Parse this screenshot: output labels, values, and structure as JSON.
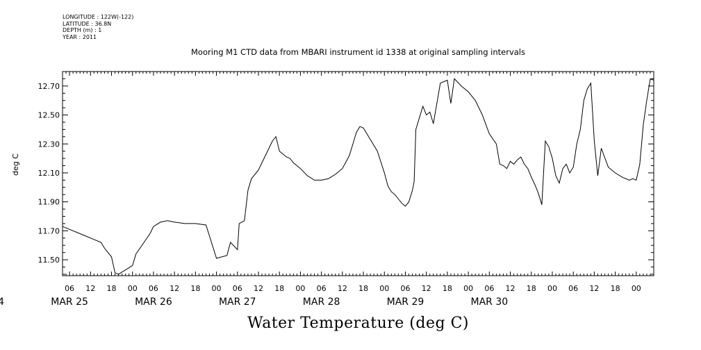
{
  "meta": {
    "longitude": "LONGITUDE : 122W(-122)",
    "latitude": "LATITUDE : 36.8N",
    "depth": "DEPTH (m) : 1",
    "year": "YEAR : 2011"
  },
  "chart_data": {
    "type": "line",
    "title": "Mooring M1 CTD data from MBARI instrument id 1338 at original sampling intervals",
    "xlabel": "Water Temperature (deg C)",
    "ylabel": "deg C",
    "ylim": [
      11.39,
      12.8
    ],
    "yticks": [
      "11.50",
      "11.70",
      "11.90",
      "12.10",
      "12.30",
      "12.50",
      "12.70"
    ],
    "x_units": "hours since MAR 23 2011 00:00",
    "xlim": [
      58,
      227
    ],
    "hour_ticks": [
      "06",
      "12",
      "18",
      "00",
      "06",
      "12",
      "18",
      "00",
      "06",
      "12",
      "18",
      "00",
      "06",
      "12",
      "18",
      "00",
      "06",
      "12",
      "18",
      "00",
      "06",
      "12",
      "18",
      "00",
      "06",
      "12",
      "18",
      "00",
      "06",
      "12",
      "18",
      "00"
    ],
    "day_labels": [
      "MAR 24",
      "MAR 25",
      "MAR 26",
      "MAR 27",
      "MAR 28",
      "MAR 29",
      "MAR 30"
    ],
    "grid": false,
    "series": [
      {
        "x": [
          58,
          60,
          63,
          66,
          69,
          70,
          72,
          73,
          74,
          76,
          78,
          79,
          81,
          83,
          84,
          86,
          88,
          90,
          93,
          96,
          99,
          102,
          105,
          106,
          108,
          108.5,
          110,
          111,
          112,
          113,
          114,
          115,
          116,
          117,
          118,
          119,
          120,
          122,
          123,
          124,
          126,
          128,
          130,
          132,
          134,
          136,
          138,
          140,
          142,
          143,
          144,
          146,
          148,
          150,
          151,
          152,
          153,
          154,
          155,
          156,
          157,
          158,
          158.5,
          159,
          160,
          161,
          162,
          163,
          164,
          166,
          168,
          169,
          170,
          172,
          174,
          176,
          178,
          180,
          182,
          183,
          184,
          185,
          186,
          187,
          188,
          189,
          190,
          191,
          192,
          193,
          194,
          195,
          196,
          197,
          198,
          199,
          200,
          201,
          202,
          203,
          204,
          205,
          206,
          207,
          208,
          209,
          210,
          211,
          212,
          214,
          216,
          218,
          220,
          221,
          222,
          223,
          224,
          225,
          226,
          227
        ],
        "y": [
          11.73,
          11.71,
          11.68,
          11.65,
          11.62,
          11.58,
          11.52,
          11.41,
          11.4,
          11.43,
          11.46,
          11.54,
          11.61,
          11.68,
          11.73,
          11.76,
          11.77,
          11.76,
          11.75,
          11.75,
          11.74,
          11.51,
          11.53,
          11.62,
          11.57,
          11.75,
          11.77,
          11.98,
          12.06,
          12.09,
          12.12,
          12.17,
          12.22,
          12.27,
          12.32,
          12.35,
          12.25,
          12.21,
          12.2,
          12.17,
          12.13,
          12.08,
          12.05,
          12.05,
          12.06,
          12.09,
          12.13,
          12.22,
          12.38,
          12.42,
          12.41,
          12.33,
          12.25,
          12.1,
          12.01,
          11.97,
          11.95,
          11.92,
          11.89,
          11.87,
          11.9,
          11.98,
          12.04,
          12.4,
          12.48,
          12.56,
          12.5,
          12.52,
          12.44,
          12.72,
          12.74,
          12.58,
          12.75,
          12.7,
          12.66,
          12.6,
          12.5,
          12.37,
          12.3,
          12.16,
          12.15,
          12.13,
          12.18,
          12.16,
          12.19,
          12.21,
          12.16,
          12.13,
          12.07,
          12.02,
          11.96,
          11.88,
          12.32,
          12.28,
          12.2,
          12.08,
          12.03,
          12.13,
          12.16,
          12.1,
          12.14,
          12.3,
          12.4,
          12.6,
          12.68,
          12.72,
          12.32,
          12.08,
          12.27,
          12.14,
          12.1,
          12.07,
          12.05,
          12.06,
          12.05,
          12.16,
          12.43,
          12.6,
          12.75,
          12.74
        ]
      }
    ]
  }
}
